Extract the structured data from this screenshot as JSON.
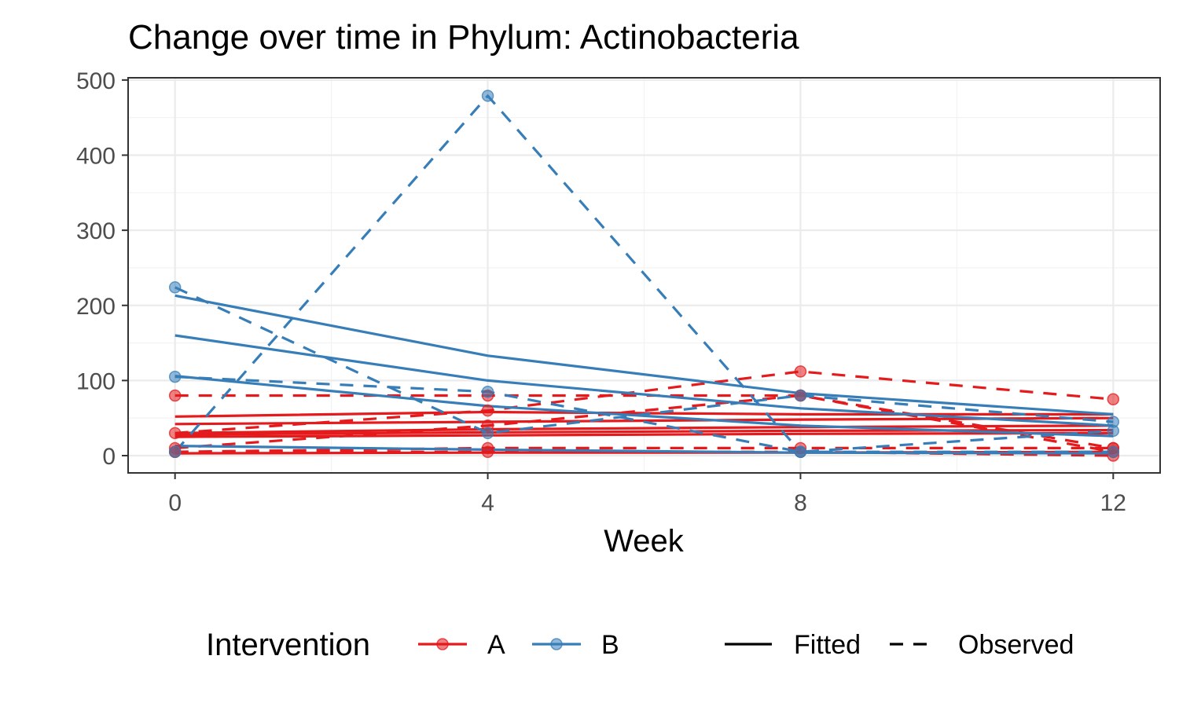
{
  "chart_data": {
    "type": "line",
    "title": "Change over time in Phylum: Actinobacteria",
    "xlabel": "Week",
    "ylabel": "",
    "x_ticks": [
      0,
      4,
      8,
      12
    ],
    "y_ticks": [
      0,
      100,
      200,
      300,
      400,
      500
    ],
    "xlim": [
      -0.6,
      12.6
    ],
    "ylim": [
      -23,
      503
    ],
    "grid": true,
    "legend": {
      "title": "Intervention",
      "placement": "bottom",
      "groups": [
        {
          "key": "A",
          "label": "A",
          "color": "#E41A1C"
        },
        {
          "key": "B",
          "label": "B",
          "color": "#377EB8"
        }
      ],
      "linetypes": [
        {
          "key": "fitted",
          "label": "Fitted"
        },
        {
          "key": "observed",
          "label": "Observed"
        }
      ]
    },
    "series": [
      {
        "group": "A",
        "kind": "observed",
        "x": [
          0,
          4,
          8,
          12
        ],
        "y": [
          80,
          80,
          80,
          5
        ]
      },
      {
        "group": "A",
        "kind": "fitted",
        "x": [
          0,
          4,
          8,
          12
        ],
        "y": [
          52,
          58,
          55,
          55
        ]
      },
      {
        "group": "A",
        "kind": "observed",
        "x": [
          0,
          4,
          8,
          12
        ],
        "y": [
          30,
          60,
          112,
          75
        ]
      },
      {
        "group": "A",
        "kind": "fitted",
        "x": [
          0,
          4,
          8,
          12
        ],
        "y": [
          42,
          45,
          48,
          50
        ]
      },
      {
        "group": "A",
        "kind": "observed",
        "x": [
          0,
          4,
          8,
          12
        ],
        "y": [
          10,
          40,
          80,
          10
        ]
      },
      {
        "group": "A",
        "kind": "fitted",
        "x": [
          0,
          4,
          8,
          12
        ],
        "y": [
          30,
          35,
          38,
          40
        ]
      },
      {
        "group": "A",
        "kind": "observed",
        "x": [
          0,
          4,
          8,
          12
        ],
        "y": [
          5,
          10,
          10,
          10
        ]
      },
      {
        "group": "A",
        "kind": "fitted",
        "x": [
          0,
          4,
          8,
          12
        ],
        "y": [
          28,
          31,
          33,
          34
        ]
      },
      {
        "group": "A",
        "kind": "observed",
        "x": [
          0,
          4,
          8,
          12
        ],
        "y": [
          5,
          5,
          5,
          0
        ]
      },
      {
        "group": "A",
        "kind": "fitted",
        "x": [
          0,
          4,
          8,
          12
        ],
        "y": [
          25,
          27,
          29,
          30
        ]
      },
      {
        "group": "A",
        "kind": "fitted",
        "x": [
          0,
          4,
          8,
          12
        ],
        "y": [
          3,
          4,
          4,
          5
        ]
      },
      {
        "group": "B",
        "kind": "observed",
        "x": [
          0,
          4,
          8,
          12
        ],
        "y": [
          5,
          479,
          5,
          5
        ]
      },
      {
        "group": "B",
        "kind": "observed",
        "x": [
          0,
          4,
          8,
          12
        ],
        "y": [
          224,
          30,
          80,
          45
        ]
      },
      {
        "group": "B",
        "kind": "fitted",
        "x": [
          0,
          4,
          8,
          12
        ],
        "y": [
          213,
          133,
          83,
          55
        ]
      },
      {
        "group": "B",
        "kind": "observed",
        "x": [
          0,
          4,
          8,
          12
        ],
        "y": [
          105,
          85,
          5,
          33
        ]
      },
      {
        "group": "B",
        "kind": "fitted",
        "x": [
          0,
          4,
          8,
          12
        ],
        "y": [
          160,
          100,
          63,
          40
        ]
      },
      {
        "group": "B",
        "kind": "fitted",
        "x": [
          0,
          4,
          8,
          12
        ],
        "y": [
          106,
          66,
          40,
          26
        ]
      },
      {
        "group": "B",
        "kind": "fitted",
        "x": [
          0,
          4,
          8,
          12
        ],
        "y": [
          13,
          8,
          4,
          3
        ]
      }
    ]
  }
}
